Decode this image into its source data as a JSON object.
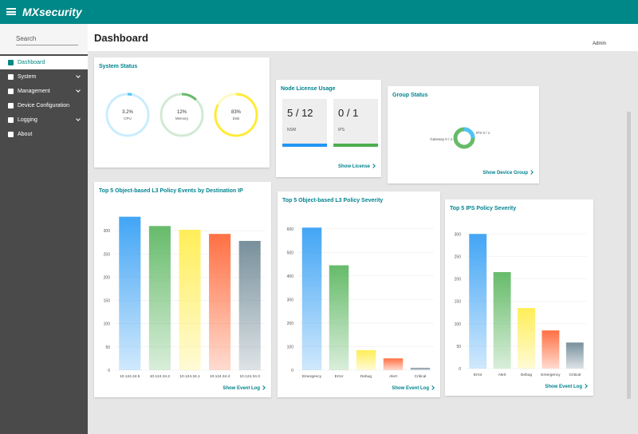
{
  "header": {
    "logo": "MXsecurity",
    "user": "Admin"
  },
  "sidebar": {
    "search": "Search",
    "items": [
      "Dashboard",
      "System",
      "Management",
      "Device Configuration",
      "Logging",
      "About"
    ]
  },
  "page_title": "Dashboard",
  "system_status": {
    "title": "System Status",
    "gauges": [
      {
        "name": "CPU",
        "value": 3.2,
        "value_label": "3.2%",
        "color": "#4fc3f7"
      },
      {
        "name": "Memory",
        "value": 12,
        "value_label": "12%",
        "color": "#66bb6a"
      },
      {
        "name": "Disk",
        "value": 83,
        "value_label": "83%",
        "color": "#ffeb3b"
      }
    ]
  },
  "node_license": {
    "title": "Node License Usage",
    "items": [
      {
        "value": "5 / 12",
        "name": "NSM",
        "color": "#2196f3"
      },
      {
        "value": "0 / 1",
        "name": "IPS",
        "color": "#4caf50"
      }
    ],
    "link": "Show License"
  },
  "group_status": {
    "title": "Group Status",
    "labels": [
      "Gateway 0 / 4",
      "IPS 0 / 1"
    ],
    "link": "Show Device Group"
  },
  "event_links": [
    "Show Event Log",
    "Show Event Log",
    "Show Event Log"
  ],
  "chart_data": [
    {
      "type": "bar",
      "title": "Top 5 Object-based L3 Policy Events by Destination IP",
      "categories": [
        "10.124.34.5",
        "10.124.34.2",
        "10.124.34.1",
        "10.124.34.4",
        "10.124.34.3"
      ],
      "values": [
        330,
        310,
        302,
        293,
        278
      ],
      "colors": [
        "#42a5f5",
        "#66bb6a",
        "#ffee58",
        "#ff7043",
        "#78909c"
      ],
      "ylim": [
        0,
        350
      ],
      "yticks": [
        0,
        50,
        100,
        150,
        200,
        250,
        300
      ],
      "grid": true
    },
    {
      "type": "bar",
      "title": "Top 5 Object-based L3 Policy Severity",
      "categories": [
        "Emergency",
        "Error",
        "Debug",
        "Alert",
        "Critical"
      ],
      "values": [
        605,
        445,
        85,
        50,
        10
      ],
      "colors": [
        "#42a5f5",
        "#66bb6a",
        "#ffee58",
        "#ff7043",
        "#78909c"
      ],
      "ylim": [
        0,
        650
      ],
      "yticks": [
        0,
        100,
        200,
        300,
        400,
        500,
        600
      ],
      "grid": true
    },
    {
      "type": "bar",
      "title": "Top 5 IPS Policy Severity",
      "categories": [
        "Error",
        "Alert",
        "Debug",
        "Emergency",
        "Critical"
      ],
      "values": [
        300,
        215,
        135,
        85,
        58
      ],
      "colors": [
        "#42a5f5",
        "#66bb6a",
        "#ffee58",
        "#ff7043",
        "#78909c"
      ],
      "ylim": [
        0,
        320
      ],
      "yticks": [
        0,
        50,
        100,
        150,
        200,
        250,
        300
      ],
      "grid": true
    }
  ]
}
